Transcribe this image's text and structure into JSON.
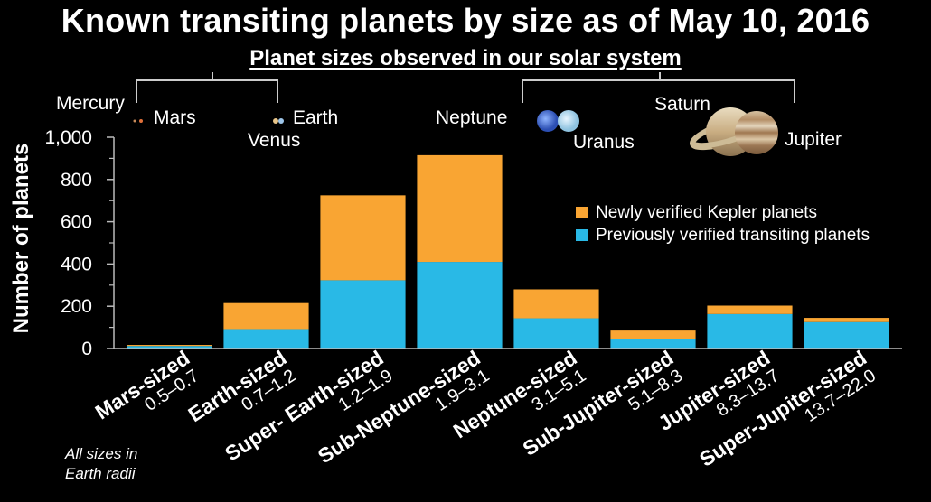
{
  "title": "Known transiting planets by size as of May 10, 2016",
  "subtitle": "Planet sizes observed in our solar system",
  "planets": {
    "mercury": "Mercury",
    "mars": "Mars",
    "earth": "Earth",
    "venus": "Venus",
    "neptune": "Neptune",
    "uranus": "Uranus",
    "saturn": "Saturn",
    "jupiter": "Jupiter"
  },
  "note": {
    "line1": "All sizes in",
    "line2": "Earth radii"
  },
  "colors": {
    "newly": "#f9a533",
    "previously": "#29b9e6",
    "axis": "#bbbbbb",
    "background": "#000000"
  },
  "chart_data": {
    "type": "bar",
    "stacked": true,
    "title": "Known transiting planets by size as of May 10, 2016",
    "ylabel": "Number of planets",
    "xlabel": "",
    "ylim": [
      0,
      1000
    ],
    "yticks": [
      "0",
      "200",
      "400",
      "600",
      "800",
      "1,000"
    ],
    "categories": [
      "Mars-sized",
      "Earth-sized",
      "Super- Earth-sized",
      "Sub-Neptune-sized",
      "Neptune-sized",
      "Sub-Jupiter-sized",
      "Jupiter-sized",
      "Super-Jupiter-sized"
    ],
    "ranges": [
      "0.5–0.7",
      "0.7–1.2",
      "1.2–1.9",
      "1.9–3.1",
      "3.1–5.1",
      "5.1–8.3",
      "8.3–13.7",
      "13.7–22.0"
    ],
    "series": [
      {
        "name": "Previously verified transiting planets",
        "color": "#29b9e6",
        "values": [
          12,
          92,
          323,
          410,
          143,
          45,
          163,
          125
        ]
      },
      {
        "name": "Newly verified Kepler planets",
        "color": "#f9a533",
        "values": [
          5,
          123,
          402,
          505,
          137,
          40,
          40,
          20
        ]
      }
    ],
    "legend": "right",
    "legend_entries": [
      "Newly verified Kepler planets",
      "Previously verified transiting planets"
    ],
    "grid": false
  }
}
